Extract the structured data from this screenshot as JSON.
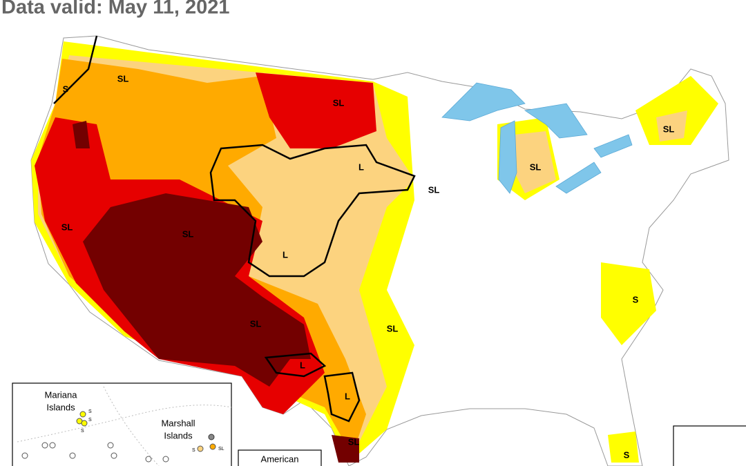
{
  "header": {
    "title": "Data valid: May 11, 2021"
  },
  "map": {
    "labels": [
      "S",
      "SL",
      "SL",
      "SL",
      "L",
      "SL",
      "SL",
      "SL",
      "SL",
      "L",
      "S",
      "SL",
      "SL",
      "L",
      "L",
      "SL",
      "S"
    ]
  },
  "insets": {
    "pacific": {
      "mariana": [
        "Mariana",
        "Islands"
      ],
      "marshall": [
        "Marshall",
        "Islands"
      ],
      "dot_labels": [
        "S",
        "S",
        "S",
        "S",
        "SL"
      ]
    },
    "samoa": {
      "title": "American"
    }
  }
}
